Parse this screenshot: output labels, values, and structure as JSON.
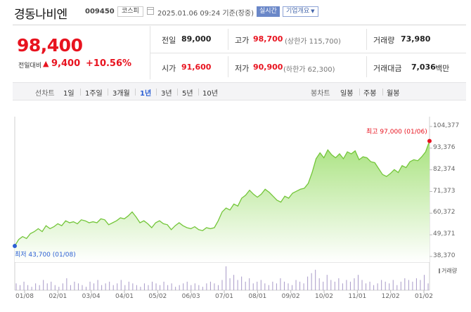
{
  "header": {
    "name": "경동나비엔",
    "code": "009450",
    "market": "코스피",
    "timestamp": "2025.01.06 09:24 기준(장중)",
    "realtime": "실시간",
    "overview": "기업개요"
  },
  "summary": {
    "price": "98,400",
    "change_label": "전일대비",
    "change_amount": "9,400",
    "change_percent": "+10.56%"
  },
  "stats": {
    "prev_close_label": "전일",
    "prev_close": "89,000",
    "high_label": "고가",
    "high": "98,700",
    "upper_limit": "(상한가 115,700)",
    "volume_label": "거래량",
    "volume": "73,980",
    "open_label": "시가",
    "open": "91,600",
    "low_label": "저가",
    "low": "90,900",
    "lower_limit": "(하한가 62,300)",
    "amount_label": "거래대금",
    "amount": "7,036",
    "amount_unit": "백만"
  },
  "periods": {
    "line_label": "선차트",
    "line_tabs": [
      "1일",
      "1주일",
      "3개월",
      "1년",
      "3년",
      "5년",
      "10년"
    ],
    "selected": "1년",
    "candle_label": "봉차트",
    "candle_tabs": [
      "일봉",
      "주봉",
      "월봉"
    ]
  },
  "chart_data": {
    "type": "area",
    "y_ticks": [
      "104,377",
      "93,376",
      "82,374",
      "71,373",
      "60,372",
      "49,371",
      "38,370"
    ],
    "x_ticks": [
      "01/08",
      "02/01",
      "03/04",
      "04/01",
      "05/02",
      "06/03",
      "07/01",
      "08/01",
      "09/02",
      "10/02",
      "11/01",
      "12/02",
      "01/02"
    ],
    "ylim": [
      38370,
      104377
    ],
    "high_annotation": "최고 97,000 (01/06)",
    "low_annotation": "최저 43,700 (01/08)",
    "volume_label": "거래량",
    "series": [
      {
        "values": [
          43700,
          47000,
          48500,
          47500,
          50000,
          51000,
          52500,
          51000,
          54000,
          52500,
          53500,
          55000,
          54000,
          56500,
          55500,
          56000,
          55000,
          57000,
          56500,
          55500,
          56000,
          55500,
          57500,
          57000,
          54500,
          55500,
          56500,
          58000,
          57500,
          59000,
          61000,
          58500,
          55500,
          56500,
          55000,
          53000,
          55500,
          56500,
          55000,
          54500,
          52000,
          54000,
          55500,
          54000,
          53000,
          52500,
          53500,
          52000,
          51500,
          53000,
          52500,
          53000,
          56500,
          61000,
          63000,
          62000,
          65000,
          64000,
          68000,
          69500,
          72000,
          70000,
          68500,
          70000,
          72500,
          71000,
          69000,
          67000,
          66000,
          69000,
          68000,
          70500,
          71500,
          72500,
          73000,
          75500,
          81000,
          88000,
          91000,
          88500,
          92500,
          90000,
          88500,
          90500,
          88000,
          91500,
          90500,
          92000,
          87500,
          89000,
          88500,
          86500,
          86000,
          83000,
          80000,
          79000,
          80500,
          82500,
          81000,
          84500,
          83500,
          86500,
          87500,
          87000,
          89000,
          91500,
          97000
        ]
      }
    ],
    "volume": [
      4,
      3,
      5,
      3,
      2,
      4,
      3,
      6,
      4,
      5,
      3,
      2,
      4,
      7,
      3,
      5,
      4,
      3,
      2,
      5,
      4,
      6,
      3,
      4,
      5,
      3,
      4,
      6,
      3,
      5,
      4,
      3,
      2,
      4,
      3,
      5,
      4,
      3,
      5,
      3,
      4,
      2,
      3,
      4,
      5,
      3,
      4,
      3,
      2,
      4,
      5,
      4,
      3,
      6,
      14,
      7,
      9,
      6,
      8,
      5,
      7,
      4,
      5,
      6,
      4,
      3,
      5,
      4,
      7,
      5,
      4,
      3,
      6,
      5,
      4,
      8,
      10,
      12,
      7,
      5,
      9,
      6,
      5,
      7,
      4,
      6,
      5,
      7,
      9,
      6,
      4,
      5,
      3,
      4,
      6,
      5,
      4,
      6,
      3,
      5,
      7,
      6,
      5,
      7,
      6,
      9,
      4
    ],
    "colors": {
      "line": "#74c63a",
      "fill_top": "#a8e27e",
      "fill_bottom": "#ffffff",
      "volume": "#a89ac8"
    }
  }
}
